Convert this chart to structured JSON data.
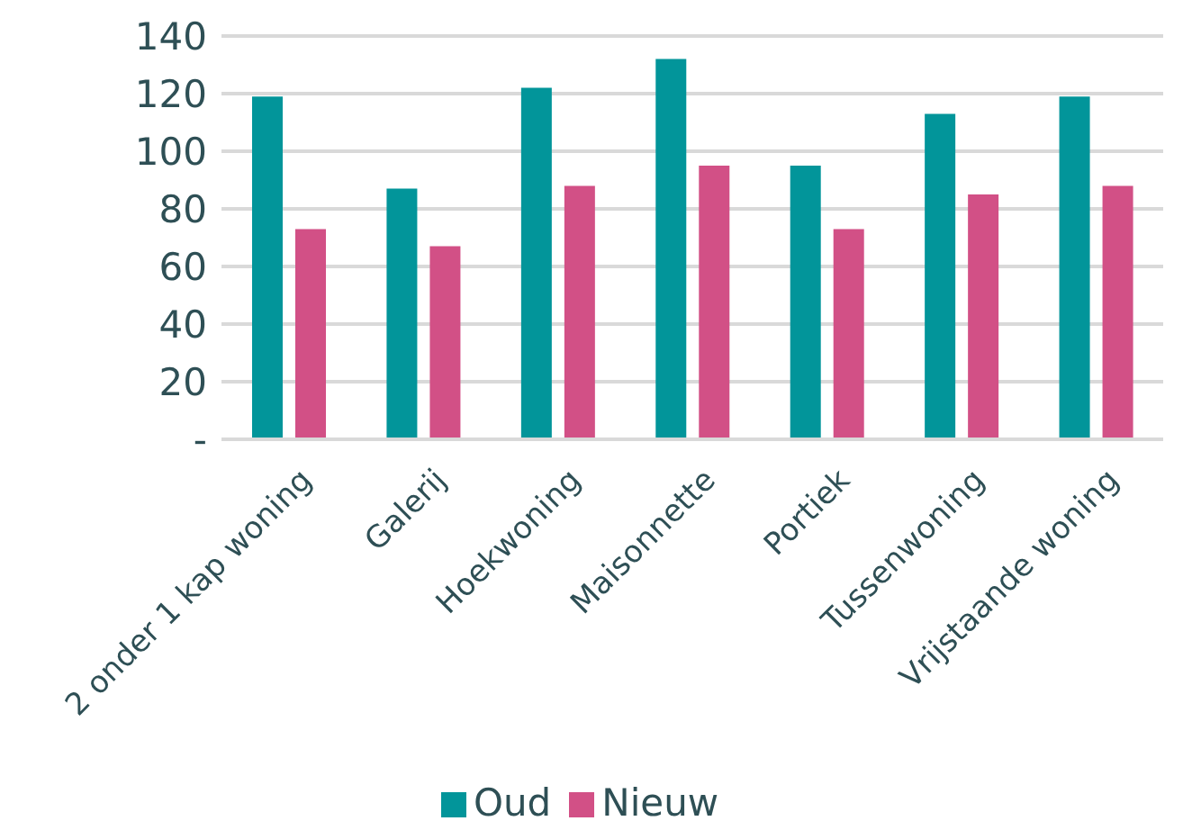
{
  "chart_data": {
    "type": "bar",
    "categories": [
      "2 onder 1 kap woning",
      "Galerij",
      "Hoekwoning",
      "Maisonnette",
      "Portiek",
      "Tussenwoning",
      "Vrijstaande woning"
    ],
    "series": [
      {
        "name": "Oud",
        "color": "#02959a",
        "values": [
          119,
          87,
          122,
          132,
          95,
          113,
          119
        ]
      },
      {
        "name": "Nieuw",
        "color": "#d25086",
        "values": [
          73,
          67,
          88,
          95,
          73,
          85,
          88
        ]
      }
    ],
    "ylim": [
      0,
      140
    ],
    "yticks": [
      {
        "value": 0,
        "label": "-"
      },
      20,
      40,
      60,
      80,
      100,
      120,
      140
    ],
    "grid": "y",
    "legend": "bottom"
  }
}
